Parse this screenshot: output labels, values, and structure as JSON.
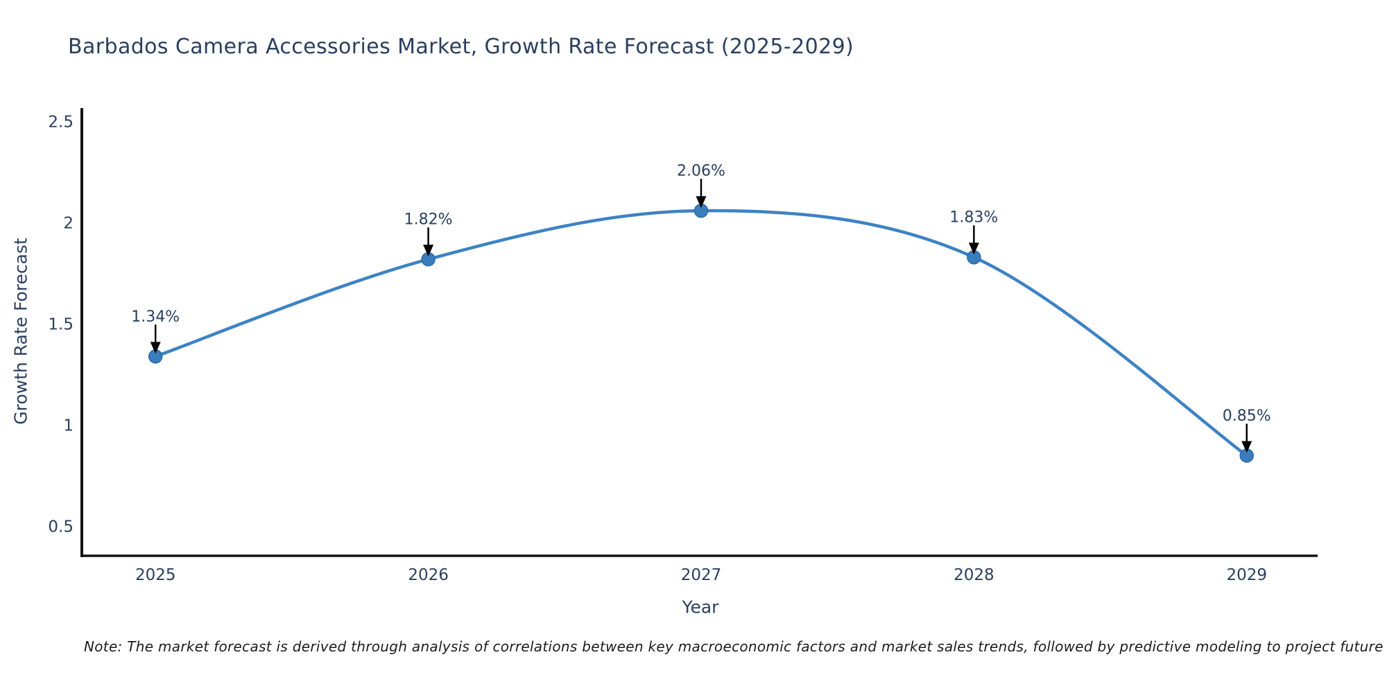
{
  "title": "Barbados Camera Accessories Market, Growth Rate Forecast (2025-2029)",
  "note": "Note: The market forecast is derived through analysis of correlations between key macroeconomic factors and market sales trends, followed by predictive modeling to project future sales",
  "chart_data": {
    "type": "line",
    "title": "Barbados Camera Accessories Market, Growth Rate Forecast (2025-2029)",
    "xlabel": "Year",
    "ylabel": "Growth Rate Forecast",
    "x": [
      2025,
      2026,
      2027,
      2028,
      2029
    ],
    "values": [
      1.34,
      1.82,
      2.06,
      1.83,
      0.85
    ],
    "point_labels": [
      "1.34%",
      "1.82%",
      "2.06%",
      "1.83%",
      "0.85%"
    ],
    "xtick_labels": [
      "2025",
      "2026",
      "2027",
      "2028",
      "2029"
    ],
    "yticks": [
      0.5,
      1,
      1.5,
      2,
      2.5
    ],
    "ytick_labels": [
      "0.5",
      "1",
      "1.5",
      "2",
      "2.5"
    ],
    "xlim": [
      2024.73,
      2029.26
    ],
    "ylim": [
      0.355,
      2.567
    ],
    "grid": false,
    "line_shape": "spline",
    "legend": "none",
    "colors": {
      "line": "#3d82c4",
      "marker": "#3a7ebd",
      "marker_edge": "#2a6aa5",
      "arrow": "#000000",
      "text": "#2a3f5f",
      "axis": "#111111"
    }
  }
}
